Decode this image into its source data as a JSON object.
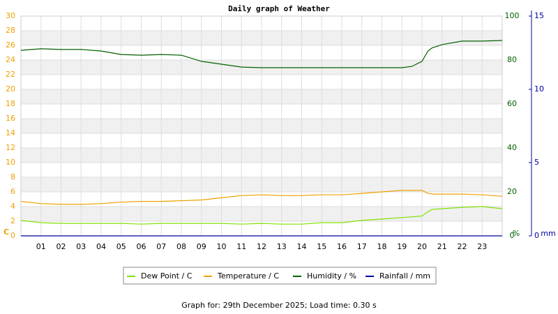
{
  "chart_data": {
    "type": "line",
    "title": "Daily graph of Weather",
    "x": [
      0,
      1,
      2,
      3,
      4,
      5,
      6,
      7,
      8,
      9,
      10,
      11,
      12,
      13,
      14,
      15,
      16,
      17,
      18,
      19,
      19.5,
      20,
      20.3,
      20.5,
      21,
      22,
      23,
      24
    ],
    "xlim": [
      0,
      24
    ],
    "xticks": [
      {
        "value": 1,
        "label": "01"
      },
      {
        "value": 2,
        "label": "02"
      },
      {
        "value": 3,
        "label": "03"
      },
      {
        "value": 4,
        "label": "04"
      },
      {
        "value": 5,
        "label": "05"
      },
      {
        "value": 6,
        "label": "06"
      },
      {
        "value": 7,
        "label": "07"
      },
      {
        "value": 8,
        "label": "08"
      },
      {
        "value": 9,
        "label": "09"
      },
      {
        "value": 10,
        "label": "10"
      },
      {
        "value": 11,
        "label": "11"
      },
      {
        "value": 12,
        "label": "12"
      },
      {
        "value": 13,
        "label": "13"
      },
      {
        "value": 14,
        "label": "14"
      },
      {
        "value": 15,
        "label": "15"
      },
      {
        "value": 16,
        "label": "16"
      },
      {
        "value": 17,
        "label": "17"
      },
      {
        "value": 18,
        "label": "18"
      },
      {
        "value": 19,
        "label": "19"
      },
      {
        "value": 20,
        "label": "20"
      },
      {
        "value": 21,
        "label": "21"
      },
      {
        "value": 22,
        "label": "22"
      },
      {
        "value": 23,
        "label": "23"
      }
    ],
    "ylim": [
      0,
      30
    ],
    "yticks": [
      0,
      2,
      4,
      6,
      8,
      10,
      12,
      14,
      16,
      18,
      20,
      22,
      24,
      26,
      28,
      30
    ],
    "y_label": "C",
    "y_color": "#f0a000",
    "y2lim": [
      0,
      100
    ],
    "y2ticks": [
      0,
      20,
      40,
      60,
      80,
      100
    ],
    "y2_label": "%",
    "y2_color": "#006000",
    "y3lim": [
      0,
      15
    ],
    "y3ticks": [
      0,
      5,
      10,
      15
    ],
    "y3_label": "mm",
    "y3_color": "#0000a0",
    "grid": true,
    "series": [
      {
        "name": "Dew Point / C",
        "color": "#80e000",
        "values": [
          2.1,
          1.8,
          1.7,
          1.7,
          1.7,
          1.7,
          1.6,
          1.7,
          1.7,
          1.7,
          1.7,
          1.6,
          1.7,
          1.6,
          1.6,
          1.8,
          1.8,
          2.1,
          2.3,
          2.5,
          2.6,
          2.7,
          3.3,
          3.6,
          3.7,
          3.9,
          4.0,
          3.7
        ]
      },
      {
        "name": "Temperature / C",
        "color": "#f0a000",
        "values": [
          4.7,
          4.4,
          4.3,
          4.3,
          4.4,
          4.6,
          4.7,
          4.7,
          4.8,
          4.9,
          5.2,
          5.5,
          5.6,
          5.5,
          5.5,
          5.6,
          5.6,
          5.8,
          6.0,
          6.2,
          6.2,
          6.2,
          5.8,
          5.7,
          5.7,
          5.7,
          5.6,
          5.4
        ]
      },
      {
        "name": "Humidity / %",
        "color": "#006000",
        "axis": "y2",
        "values": [
          84.4,
          85.1,
          84.8,
          84.8,
          84.1,
          82.5,
          82.2,
          82.5,
          82.2,
          79.4,
          78.1,
          76.8,
          76.5,
          76.5,
          76.5,
          76.5,
          76.5,
          76.5,
          76.5,
          76.5,
          77.1,
          79.4,
          84.1,
          85.5,
          87.0,
          88.6,
          88.6,
          88.9
        ]
      },
      {
        "name": "Rainfall / mm",
        "color": "#0000a0",
        "axis": "y3",
        "values": [
          0,
          0,
          0,
          0,
          0,
          0,
          0,
          0,
          0,
          0,
          0,
          0,
          0,
          0,
          0,
          0,
          0,
          0,
          0,
          0,
          0,
          0,
          0,
          0,
          0,
          0,
          0,
          0
        ]
      }
    ],
    "footer": "Graph for: 29th December 2025; Load time: 0.30 s"
  }
}
